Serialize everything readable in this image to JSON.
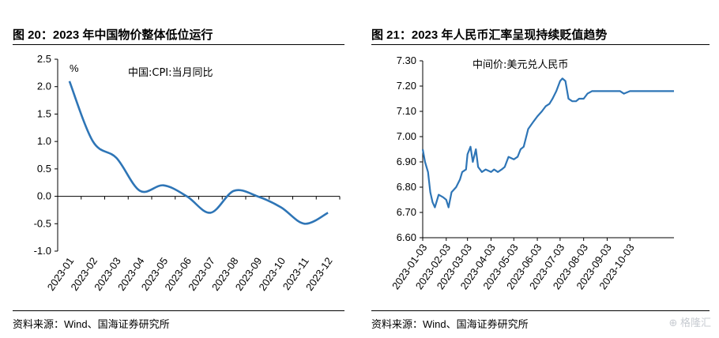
{
  "left": {
    "title": "图 20：2023 年中国物价整体低位运行",
    "source": "资料来源：Wind、国海证券研究所",
    "chart_data": {
      "type": "line",
      "title": "中国:CPI:当月同比",
      "ylabel": "%",
      "ylim": [
        -1.0,
        2.5
      ],
      "yticks": [
        "2.5",
        "2.0",
        "1.5",
        "1.0",
        "0.5",
        "0.0",
        "-0.5",
        "-1.0"
      ],
      "categories": [
        "2023-01",
        "2023-02",
        "2023-03",
        "2023-04",
        "2023-05",
        "2023-06",
        "2023-07",
        "2023-08",
        "2023-09",
        "2023-10",
        "2023-11",
        "2023-12"
      ],
      "series": [
        {
          "name": "中国:CPI:当月同比",
          "color": "#2e75b6",
          "values": [
            2.1,
            1.0,
            0.7,
            0.1,
            0.2,
            0.0,
            -0.3,
            0.1,
            0.0,
            -0.2,
            -0.5,
            -0.3
          ]
        }
      ]
    }
  },
  "right": {
    "title": "图 21：2023 年人民币汇率呈现持续贬值趋势",
    "source": "资料来源：Wind、国海证券研究所",
    "chart_data": {
      "type": "line",
      "title": "中间价:美元兑人民币",
      "ylim": [
        6.6,
        7.3
      ],
      "yticks": [
        "7.30",
        "7.20",
        "7.10",
        "7.00",
        "6.90",
        "6.80",
        "6.70",
        "6.60"
      ],
      "x_range": [
        "2023-01-03",
        "2023-11-30"
      ],
      "categories": [
        "2023-01-03",
        "2023-02-03",
        "2023-03-03",
        "2023-04-03",
        "2023-05-03",
        "2023-06-03",
        "2023-07-03",
        "2023-08-03",
        "2023-09-03",
        "2023-10-03"
      ],
      "series": [
        {
          "name": "中间价:美元兑人民币",
          "color": "#2e75b6",
          "points": [
            [
              "2023-01-03",
              6.95
            ],
            [
              "2023-01-06",
              6.9
            ],
            [
              "2023-01-10",
              6.86
            ],
            [
              "2023-01-13",
              6.78
            ],
            [
              "2023-01-16",
              6.74
            ],
            [
              "2023-01-19",
              6.72
            ],
            [
              "2023-01-24",
              6.77
            ],
            [
              "2023-01-30",
              6.76
            ],
            [
              "2023-02-03",
              6.75
            ],
            [
              "2023-02-06",
              6.72
            ],
            [
              "2023-02-10",
              6.78
            ],
            [
              "2023-02-16",
              6.8
            ],
            [
              "2023-02-21",
              6.83
            ],
            [
              "2023-02-24",
              6.86
            ],
            [
              "2023-03-01",
              6.87
            ],
            [
              "2023-03-03",
              6.93
            ],
            [
              "2023-03-07",
              6.96
            ],
            [
              "2023-03-10",
              6.9
            ],
            [
              "2023-03-14",
              6.95
            ],
            [
              "2023-03-17",
              6.88
            ],
            [
              "2023-03-22",
              6.86
            ],
            [
              "2023-03-27",
              6.87
            ],
            [
              "2023-04-03",
              6.86
            ],
            [
              "2023-04-07",
              6.87
            ],
            [
              "2023-04-12",
              6.86
            ],
            [
              "2023-04-17",
              6.87
            ],
            [
              "2023-04-21",
              6.88
            ],
            [
              "2023-04-26",
              6.92
            ],
            [
              "2023-05-03",
              6.91
            ],
            [
              "2023-05-08",
              6.92
            ],
            [
              "2023-05-12",
              6.95
            ],
            [
              "2023-05-16",
              6.96
            ],
            [
              "2023-05-22",
              7.03
            ],
            [
              "2023-05-29",
              7.06
            ],
            [
              "2023-06-03",
              7.08
            ],
            [
              "2023-06-09",
              7.1
            ],
            [
              "2023-06-14",
              7.12
            ],
            [
              "2023-06-19",
              7.13
            ],
            [
              "2023-06-23",
              7.15
            ],
            [
              "2023-06-28",
              7.18
            ],
            [
              "2023-07-03",
              7.22
            ],
            [
              "2023-07-06",
              7.23
            ],
            [
              "2023-07-10",
              7.22
            ],
            [
              "2023-07-14",
              7.15
            ],
            [
              "2023-07-19",
              7.14
            ],
            [
              "2023-07-24",
              7.14
            ],
            [
              "2023-07-28",
              7.15
            ],
            [
              "2023-08-03",
              7.15
            ],
            [
              "2023-08-08",
              7.17
            ],
            [
              "2023-08-14",
              7.18
            ],
            [
              "2023-08-18",
              7.18
            ],
            [
              "2023-08-24",
              7.18
            ],
            [
              "2023-08-30",
              7.18
            ],
            [
              "2023-09-03",
              7.18
            ],
            [
              "2023-09-07",
              7.18
            ],
            [
              "2023-09-11",
              7.18
            ],
            [
              "2023-09-15",
              7.18
            ],
            [
              "2023-09-20",
              7.18
            ],
            [
              "2023-09-25",
              7.17
            ],
            [
              "2023-10-03",
              7.18
            ],
            [
              "2023-10-10",
              7.18
            ],
            [
              "2023-10-17",
              7.18
            ],
            [
              "2023-10-24",
              7.18
            ],
            [
              "2023-10-31",
              7.18
            ],
            [
              "2023-11-08",
              7.18
            ],
            [
              "2023-11-15",
              7.18
            ],
            [
              "2023-11-22",
              7.18
            ],
            [
              "2023-11-30",
              7.18
            ]
          ]
        }
      ]
    }
  },
  "watermark": "格隆汇"
}
